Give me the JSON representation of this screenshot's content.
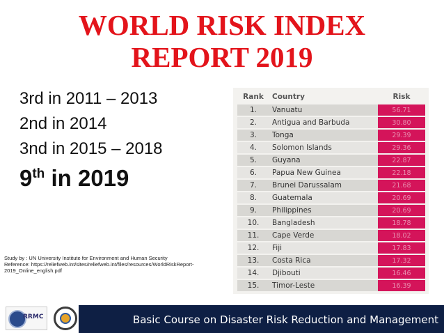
{
  "slide": {
    "title_line1": "WORLD RISK INDEX",
    "title_line2": "REPORT 2019",
    "rank_lines": [
      "3rd in 2011 – 2013",
      "2nd in 2014",
      "3nd in 2015 – 2018"
    ],
    "current_rank_num": "9",
    "current_rank_sup": "th",
    "current_rank_rest": " in 2019",
    "study_line": "Study by : UN University Institute for Environment and Human Security",
    "reference_line": "Reference: https://reliefweb.int/sites/reliefweb.int/files/resources/WorldRiskReport-2019_Online_english.pdf"
  },
  "table": {
    "headers": {
      "rank": "Rank",
      "country": "Country",
      "risk": "Risk"
    },
    "rows": [
      {
        "rank": "1.",
        "country": "Vanuatu",
        "risk": "56.71"
      },
      {
        "rank": "2.",
        "country": "Antigua and Barbuda",
        "risk": "30.80"
      },
      {
        "rank": "3.",
        "country": "Tonga",
        "risk": "29.39"
      },
      {
        "rank": "4.",
        "country": "Solomon Islands",
        "risk": "29.36"
      },
      {
        "rank": "5.",
        "country": "Guyana",
        "risk": "22.87"
      },
      {
        "rank": "6.",
        "country": "Papua New Guinea",
        "risk": "22.18"
      },
      {
        "rank": "7.",
        "country": "Brunei Darussalam",
        "risk": "21.68"
      },
      {
        "rank": "8.",
        "country": "Guatemala",
        "risk": "20.69"
      },
      {
        "rank": "9.",
        "country": "Philippines",
        "risk": "20.69"
      },
      {
        "rank": "10.",
        "country": "Bangladesh",
        "risk": "18.78"
      },
      {
        "rank": "11.",
        "country": "Cape Verde",
        "risk": "18.02"
      },
      {
        "rank": "12.",
        "country": "Fiji",
        "risk": "17.83"
      },
      {
        "rank": "13.",
        "country": "Costa Rica",
        "risk": "17.32"
      },
      {
        "rank": "14.",
        "country": "Djibouti",
        "risk": "16.46"
      },
      {
        "rank": "15.",
        "country": "Timor-Leste",
        "risk": "16.39"
      }
    ]
  },
  "footer": {
    "course_title": "Basic Course on Disaster Risk Reduction and Management",
    "logo1_text": "RRMC",
    "logo1_icon": "rrmc-logo-icon",
    "logo2_icon": "agency-seal-icon"
  },
  "colors": {
    "title": "#e3141b",
    "risk_cell": "#d4145a",
    "footer_bar": "#0e1f44"
  }
}
